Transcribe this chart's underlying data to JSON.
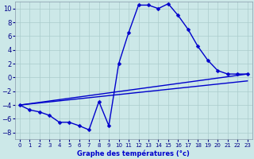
{
  "title": "Graphe des températures (°c)",
  "bg_color": "#cce8e8",
  "grid_color": "#aacccc",
  "line_color": "#0000cc",
  "xlim": [
    -0.5,
    23.5
  ],
  "ylim": [
    -9,
    11
  ],
  "xticks": [
    0,
    1,
    2,
    3,
    4,
    5,
    6,
    7,
    8,
    9,
    10,
    11,
    12,
    13,
    14,
    15,
    16,
    17,
    18,
    19,
    20,
    21,
    22,
    23
  ],
  "yticks": [
    -8,
    -6,
    -4,
    -2,
    0,
    2,
    4,
    6,
    8,
    10
  ],
  "curve_x": [
    0,
    1,
    2,
    3,
    4,
    5,
    6,
    7,
    8,
    9,
    10,
    11,
    12,
    13,
    14,
    15,
    16,
    17,
    18,
    19,
    20,
    21,
    22,
    23
  ],
  "curve_y": [
    -4,
    -4.7,
    -5.0,
    -5.5,
    -6.5,
    -6.5,
    -7.0,
    -7.6,
    -3.5,
    -7.0,
    2.0,
    6.5,
    10.5,
    10.5,
    10.0,
    10.7,
    9.0,
    7.0,
    4.5,
    2.5,
    1.0,
    0.5,
    0.5,
    0.5
  ],
  "line2_x": [
    0,
    23
  ],
  "line2_y": [
    -4.0,
    0.5
  ],
  "line3_x": [
    0,
    23
  ],
  "line3_y": [
    -4.0,
    -0.5
  ],
  "markersize": 2.5,
  "linewidth": 1.0,
  "xlabel_fontsize": 6,
  "tick_fontsize": 5
}
